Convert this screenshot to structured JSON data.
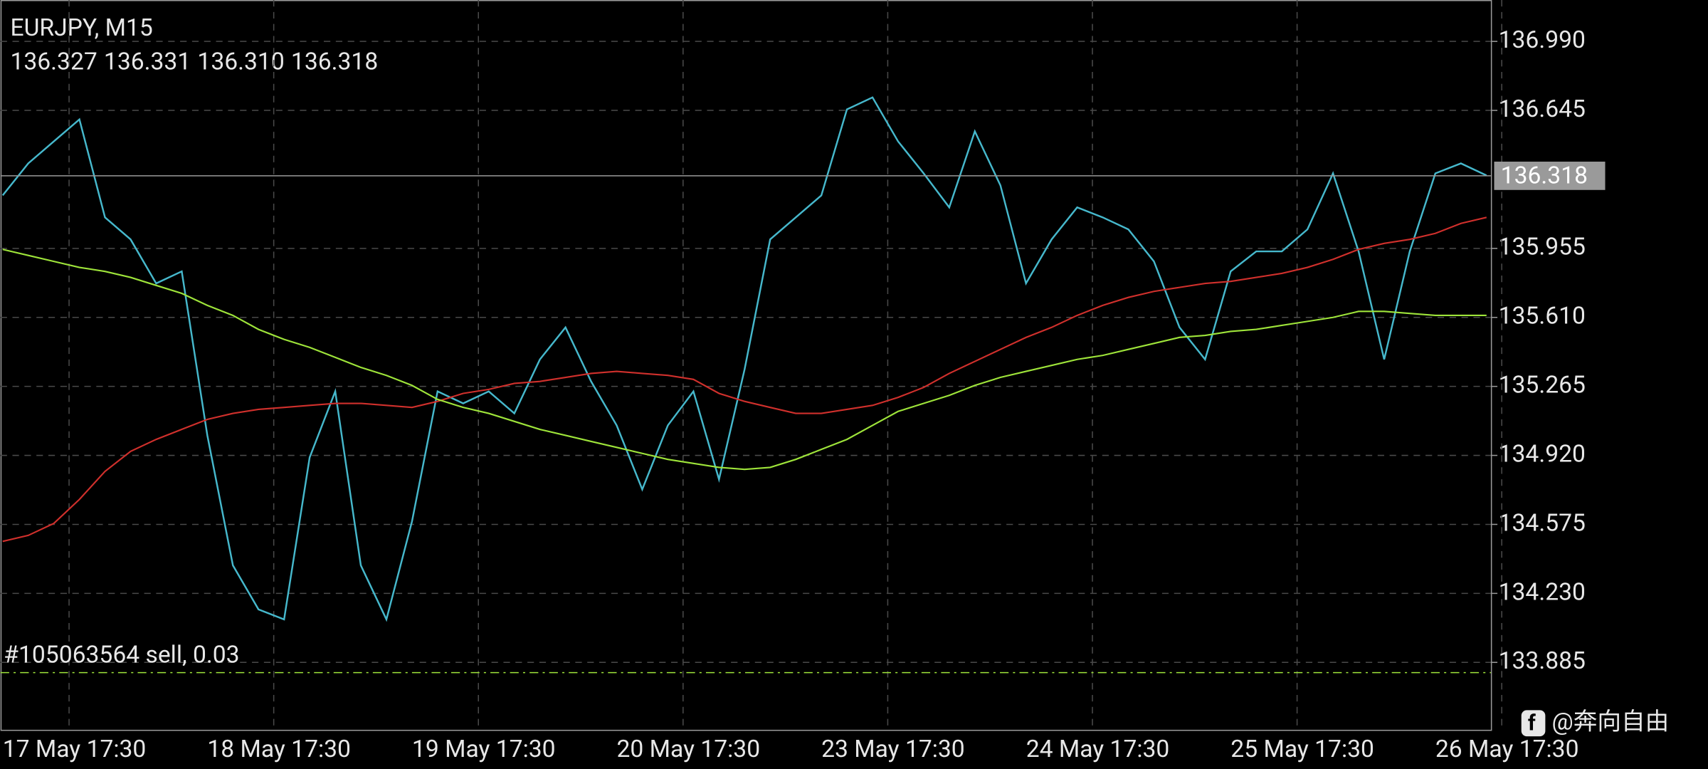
{
  "chart_data": {
    "type": "line",
    "title": "EURJPY, M15",
    "ohlc": [
      136.327,
      136.331,
      136.31,
      136.318
    ],
    "ohlc_labels": [
      "136.327",
      "136.331",
      "136.310",
      "136.318"
    ],
    "categories": [
      "17 May 17:30",
      null,
      null,
      null,
      null,
      null,
      null,
      null,
      "18 May 17:30",
      null,
      null,
      null,
      null,
      null,
      null,
      null,
      "19 May 17:30",
      null,
      null,
      null,
      null,
      null,
      null,
      null,
      "20 May 17:30",
      null,
      null,
      null,
      null,
      null,
      null,
      null,
      "23 May 17:30",
      null,
      null,
      null,
      null,
      null,
      null,
      null,
      "24 May 17:30",
      null,
      null,
      null,
      null,
      null,
      null,
      null,
      "25 May 17:30",
      null,
      null,
      null,
      null,
      null,
      null,
      null,
      "26 May 17:30",
      null,
      null
    ],
    "series": [
      {
        "color": "#46b8cc",
        "values": [
          136.22,
          136.38,
          136.49,
          136.6,
          136.11,
          136.0,
          135.78,
          135.84,
          135.02,
          134.37,
          134.15,
          134.1,
          134.91,
          135.24,
          134.37,
          134.1,
          134.59,
          135.24,
          135.18,
          135.24,
          135.13,
          135.4,
          135.56,
          135.29,
          135.07,
          134.75,
          135.07,
          135.24,
          134.8,
          135.35,
          136.0,
          136.11,
          136.22,
          136.65,
          136.71,
          136.49,
          136.33,
          136.16,
          136.54,
          136.27,
          135.78,
          136.0,
          136.16,
          136.11,
          136.05,
          135.89,
          135.56,
          135.4,
          135.84,
          135.94,
          135.94,
          136.05,
          136.33,
          135.94,
          135.4,
          135.94,
          136.33,
          136.38,
          136.32
        ]
      },
      {
        "color": "#d0302c",
        "values": [
          134.49,
          134.52,
          134.58,
          134.7,
          134.84,
          134.94,
          135.0,
          135.05,
          135.1,
          135.13,
          135.15,
          135.16,
          135.17,
          135.18,
          135.18,
          135.17,
          135.16,
          135.19,
          135.23,
          135.25,
          135.28,
          135.29,
          135.31,
          135.33,
          135.34,
          135.33,
          135.32,
          135.3,
          135.23,
          135.19,
          135.16,
          135.13,
          135.13,
          135.15,
          135.17,
          135.21,
          135.26,
          135.33,
          135.39,
          135.45,
          135.51,
          135.56,
          135.62,
          135.67,
          135.71,
          135.74,
          135.76,
          135.78,
          135.79,
          135.81,
          135.83,
          135.86,
          135.9,
          135.95,
          135.98,
          136.0,
          136.03,
          136.08,
          136.11
        ]
      },
      {
        "color": "#9ee43a",
        "values": [
          135.95,
          135.92,
          135.89,
          135.86,
          135.84,
          135.81,
          135.77,
          135.73,
          135.67,
          135.62,
          135.55,
          135.5,
          135.46,
          135.41,
          135.36,
          135.32,
          135.27,
          135.2,
          135.16,
          135.13,
          135.09,
          135.05,
          135.02,
          134.99,
          134.96,
          134.93,
          134.9,
          134.88,
          134.86,
          134.85,
          134.86,
          134.9,
          134.95,
          135.0,
          135.07,
          135.14,
          135.18,
          135.22,
          135.27,
          135.31,
          135.34,
          135.37,
          135.4,
          135.42,
          135.45,
          135.48,
          135.51,
          135.52,
          135.54,
          135.55,
          135.57,
          135.59,
          135.61,
          135.64,
          135.64,
          135.63,
          135.62,
          135.62,
          135.62
        ]
      }
    ],
    "ylim": [
      133.548,
      137.197
    ],
    "yticks": [
      {
        "value": 136.99,
        "label": "136.990"
      },
      {
        "value": 136.645,
        "label": "136.645"
      },
      {
        "value": 135.955,
        "label": "135.955"
      },
      {
        "value": 135.61,
        "label": "135.610"
      },
      {
        "value": 135.265,
        "label": "135.265"
      },
      {
        "value": 134.92,
        "label": "134.920"
      },
      {
        "value": 134.575,
        "label": "134.575"
      },
      {
        "value": 134.23,
        "label": "134.230"
      },
      {
        "value": 133.885,
        "label": "133.885"
      }
    ],
    "grid": true,
    "current_price": 136.318,
    "order": {
      "label": "#105063564 sell, 0.03",
      "value": 133.834
    },
    "watermark": "@奔向自由"
  }
}
